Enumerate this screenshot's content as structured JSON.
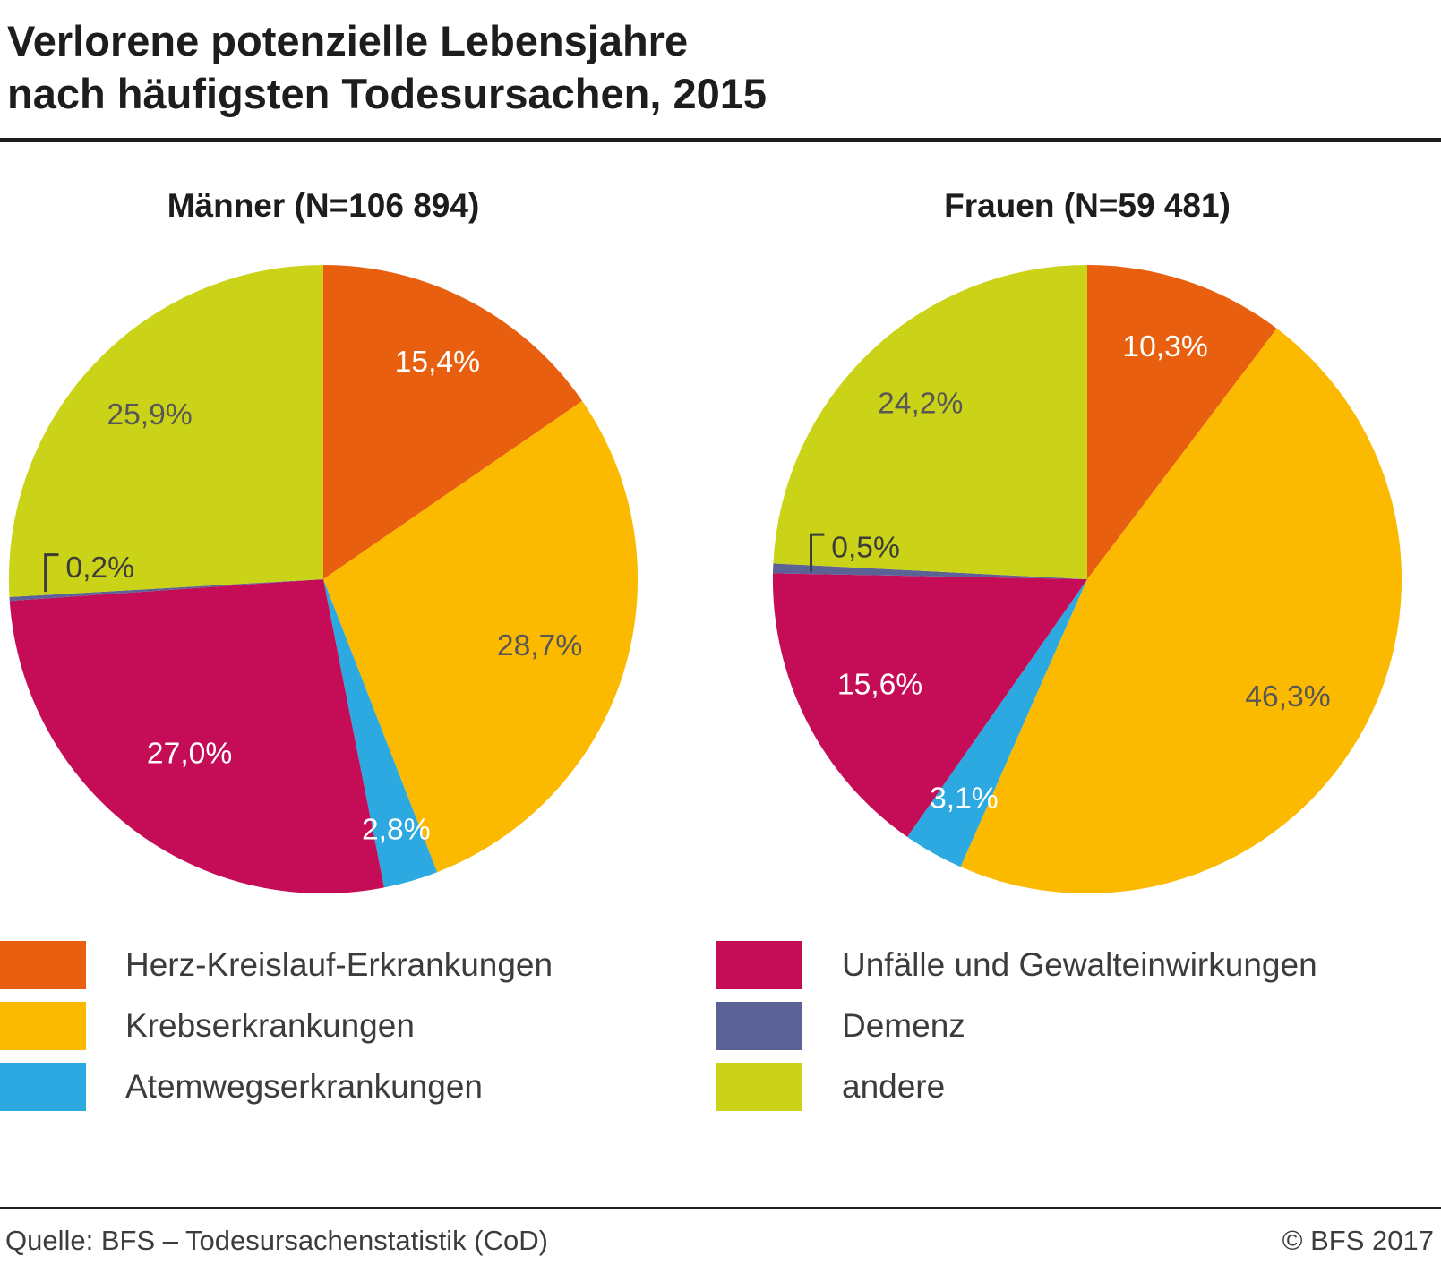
{
  "title": "Verlorene potenzielle Lebensjahre\nnach häufigsten Todesursachen, 2015",
  "chart_data": [
    {
      "type": "pie",
      "title": "Männer (N=106 894)",
      "n_label": "N=106 894",
      "start_angle_deg": 0,
      "direction": "clockwise",
      "slices": [
        {
          "key": "herz-kreislauf",
          "category": "Herz-Kreislauf-Erkrankungen",
          "value": 15.4,
          "label": "15,4%",
          "color": "#e8600f",
          "label_color": "#ffffff",
          "label_r": 0.78
        },
        {
          "key": "krebs",
          "category": "Krebserkrankungen",
          "value": 28.7,
          "label": "28,7%",
          "color": "#fbba00",
          "label_color": "#575756",
          "label_r": 0.72
        },
        {
          "key": "atemwege",
          "category": "Atemwegserkrankungen",
          "value": 2.8,
          "label": "2,8%",
          "color": "#2da9e1",
          "label_color": "#ffffff",
          "label_r": 0.83
        },
        {
          "key": "unfaelle",
          "category": "Unfälle und Gewalteinwirkungen",
          "value": 27.0,
          "label": "27,0%",
          "color": "#c40d56",
          "label_color": "#ffffff",
          "label_r": 0.7
        },
        {
          "key": "demenz",
          "category": "Demenz",
          "value": 0.2,
          "label": "0,2%",
          "color": "#5d6296",
          "label_color": "#3c3c3b",
          "label_r": 0.82,
          "label_angle": 272.5,
          "label_anchor": "start",
          "marker": true
        },
        {
          "key": "andere",
          "category": "andere",
          "value": 25.9,
          "label": "25,9%",
          "color": "#cbd318",
          "label_color": "#575756",
          "label_r": 0.76
        }
      ]
    },
    {
      "type": "pie",
      "title": "Frauen (N=59 481)",
      "n_label": "N=59 481",
      "start_angle_deg": 0,
      "direction": "clockwise",
      "slices": [
        {
          "key": "herz-kreislauf",
          "category": "Herz-Kreislauf-Erkrankungen",
          "value": 10.3,
          "label": "10,3%",
          "color": "#e8600f",
          "label_color": "#ffffff",
          "label_r": 0.78
        },
        {
          "key": "krebs",
          "category": "Krebserkrankungen",
          "value": 46.3,
          "label": "46,3%",
          "color": "#fbba00",
          "label_color": "#575756",
          "label_r": 0.74
        },
        {
          "key": "atemwege",
          "category": "Atemwegserkrankungen",
          "value": 3.1,
          "label": "3,1%",
          "color": "#2da9e1",
          "label_color": "#ffffff",
          "label_r": 0.8
        },
        {
          "key": "unfaelle",
          "category": "Unfälle und Gewalteinwirkungen",
          "value": 15.6,
          "label": "15,6%",
          "color": "#c40d56",
          "label_color": "#ffffff",
          "label_r": 0.74
        },
        {
          "key": "demenz",
          "category": "Demenz",
          "value": 0.5,
          "label": "0,5%",
          "color": "#5d6296",
          "label_color": "#3c3c3b",
          "label_r": 0.82,
          "label_angle": 277.0,
          "label_anchor": "start",
          "marker": true
        },
        {
          "key": "andere",
          "category": "andere",
          "value": 24.2,
          "label": "24,2%",
          "color": "#cbd318",
          "label_color": "#575756",
          "label_r": 0.77
        }
      ]
    }
  ],
  "legend": {
    "items": [
      {
        "label": "Herz-Kreislauf-Erkrankungen",
        "color": "#e8600f"
      },
      {
        "label": "Krebserkrankungen",
        "color": "#fbba00"
      },
      {
        "label": "Atemwegserkrankungen",
        "color": "#2da9e1"
      },
      {
        "label": "Unfälle und Gewalteinwirkungen",
        "color": "#c40d56"
      },
      {
        "label": "Demenz",
        "color": "#5d6296"
      },
      {
        "label": "andere",
        "color": "#cbd318"
      }
    ]
  },
  "footer": {
    "source": "Quelle: BFS – Todesursachenstatistik (CoD)",
    "copyright": "© BFS 2017"
  },
  "colors": {
    "title_text": "#1d1d1b",
    "body_text": "#3c3c3b",
    "rule": "#1d1d1b"
  }
}
